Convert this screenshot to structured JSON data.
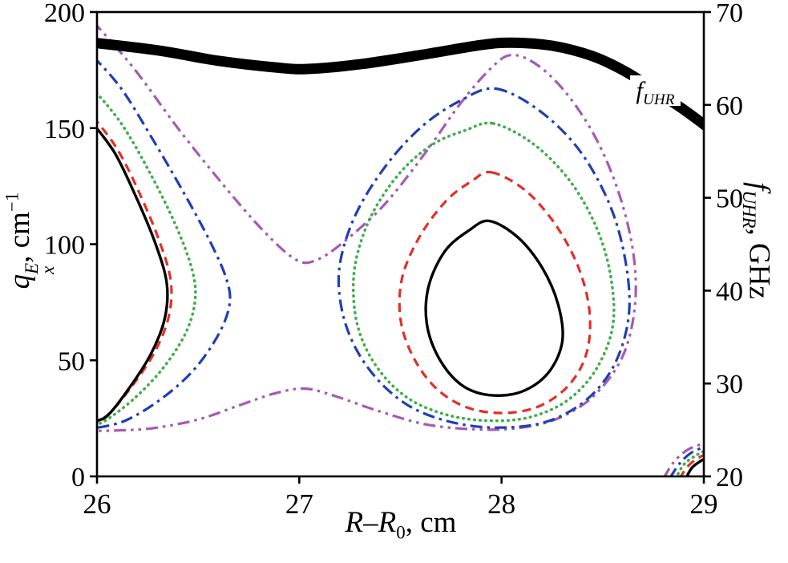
{
  "figure": {
    "x_axis": {
      "r1": "R",
      "dash": "–",
      "r2": "R",
      "sub": "0",
      "rest": ", cm"
    },
    "y_left": {
      "q": "q",
      "sup": "E",
      "sub": "x",
      "rest": ", cm",
      "exp": "−1"
    },
    "y_right": {
      "f": "f",
      "sub": "UHR",
      "rest": ", GHz"
    },
    "curve_label": {
      "f": "f",
      "sub": "UHR",
      "x": 28.76,
      "y": 166
    }
  },
  "chart_data": {
    "type": "contour",
    "title": "",
    "xlabel": "R–R0, cm",
    "ylabel_left": "qxE, cm−1",
    "ylabel_right": "fUHR, GHz",
    "x_range": [
      26,
      29
    ],
    "y_left_range": [
      0,
      200
    ],
    "y_right_range": [
      20,
      70
    ],
    "x_ticks": [
      26,
      27,
      28,
      29
    ],
    "y_left_ticks": [
      0,
      50,
      100,
      150,
      200
    ],
    "y_right_ticks": [
      20,
      30,
      40,
      50,
      60,
      70
    ],
    "grid": false,
    "colors": {
      "black": "#000000",
      "red": "#e03127",
      "green": "#3fae49",
      "blue": "#1f3fb4",
      "purple": "#a55ab4"
    },
    "series": [
      {
        "name": "purple-dumbbell-contour",
        "color": "#a55ab4",
        "style": "dashdotdot",
        "width": 3.2,
        "closed": false,
        "points": [
          [
            25.98,
            196
          ],
          [
            26.18,
            176
          ],
          [
            26.4,
            150
          ],
          [
            26.62,
            126
          ],
          [
            26.82,
            106
          ],
          [
            26.98,
            93.5
          ],
          [
            27.08,
            93
          ],
          [
            27.22,
            101
          ],
          [
            27.42,
            117
          ],
          [
            27.62,
            139
          ],
          [
            27.8,
            161
          ],
          [
            27.95,
            176
          ],
          [
            28.05,
            181.5
          ],
          [
            28.18,
            177
          ],
          [
            28.33,
            164
          ],
          [
            28.47,
            145
          ],
          [
            28.58,
            122
          ],
          [
            28.65,
            97
          ],
          [
            28.66,
            74
          ],
          [
            28.6,
            52
          ],
          [
            28.46,
            35
          ],
          [
            28.28,
            25
          ],
          [
            28.08,
            20.8
          ],
          [
            27.86,
            20.3
          ],
          [
            27.62,
            22.5
          ],
          [
            27.38,
            28.5
          ],
          [
            27.18,
            34.5
          ],
          [
            27.03,
            37.8
          ],
          [
            26.88,
            35.8
          ],
          [
            26.7,
            30.5
          ],
          [
            26.5,
            24.5
          ],
          [
            26.28,
            20.8
          ],
          [
            26.1,
            19.8
          ],
          [
            25.98,
            19.6
          ]
        ]
      },
      {
        "name": "blue-left-contour",
        "color": "#1f3fb4",
        "style": "dashdot",
        "width": 3.2,
        "closed": false,
        "points": [
          [
            25.98,
            181
          ],
          [
            26.12,
            167
          ],
          [
            26.27,
            146
          ],
          [
            26.43,
            122
          ],
          [
            26.56,
            101
          ],
          [
            26.64,
            85
          ],
          [
            26.655,
            74
          ],
          [
            26.6,
            61
          ],
          [
            26.48,
            46
          ],
          [
            26.32,
            33.5
          ],
          [
            26.14,
            24
          ],
          [
            25.98,
            20.6
          ]
        ]
      },
      {
        "name": "blue-right-contour",
        "color": "#1f3fb4",
        "style": "dashdot",
        "width": 3.2,
        "closed": true,
        "points": [
          [
            27.97,
            167
          ],
          [
            28.18,
            158
          ],
          [
            28.38,
            141
          ],
          [
            28.53,
            118
          ],
          [
            28.61,
            94
          ],
          [
            28.63,
            70
          ],
          [
            28.56,
            48.5
          ],
          [
            28.42,
            33
          ],
          [
            28.22,
            23.5
          ],
          [
            27.98,
            21
          ],
          [
            27.76,
            23.2
          ],
          [
            27.56,
            29.5
          ],
          [
            27.4,
            40.5
          ],
          [
            27.28,
            55
          ],
          [
            27.21,
            72
          ],
          [
            27.2,
            91
          ],
          [
            27.28,
            113
          ],
          [
            27.43,
            134
          ],
          [
            27.61,
            151
          ],
          [
            27.8,
            162
          ]
        ]
      },
      {
        "name": "green-left-contour",
        "color": "#3fae49",
        "style": "dotted",
        "width": 3.6,
        "closed": false,
        "points": [
          [
            25.98,
            167
          ],
          [
            26.12,
            152
          ],
          [
            26.26,
            131
          ],
          [
            26.39,
            108
          ],
          [
            26.47,
            89
          ],
          [
            26.485,
            76
          ],
          [
            26.44,
            62
          ],
          [
            26.33,
            47
          ],
          [
            26.19,
            34
          ],
          [
            26.05,
            24.5
          ],
          [
            25.98,
            21.8
          ]
        ]
      },
      {
        "name": "green-right-contour",
        "color": "#3fae49",
        "style": "dotted",
        "width": 3.6,
        "closed": true,
        "points": [
          [
            27.96,
            152
          ],
          [
            28.16,
            143
          ],
          [
            28.34,
            127
          ],
          [
            28.47,
            107
          ],
          [
            28.54,
            86
          ],
          [
            28.55,
            65
          ],
          [
            28.47,
            46.5
          ],
          [
            28.33,
            33
          ],
          [
            28.14,
            25.5
          ],
          [
            27.93,
            24
          ],
          [
            27.73,
            26.5
          ],
          [
            27.55,
            33
          ],
          [
            27.41,
            44
          ],
          [
            27.31,
            59
          ],
          [
            27.27,
            75
          ],
          [
            27.28,
            93
          ],
          [
            27.36,
            113
          ],
          [
            27.5,
            131
          ],
          [
            27.66,
            143
          ],
          [
            27.82,
            149
          ]
        ]
      },
      {
        "name": "red-left-contour",
        "color": "#e03127",
        "style": "dashed",
        "width": 3.2,
        "closed": false,
        "points": [
          [
            25.98,
            155
          ],
          [
            26.1,
            141
          ],
          [
            26.21,
            122
          ],
          [
            26.31,
            101
          ],
          [
            26.365,
            84
          ],
          [
            26.355,
            69
          ],
          [
            26.285,
            53.5
          ],
          [
            26.17,
            38.5
          ],
          [
            26.06,
            27
          ],
          [
            25.98,
            22.8
          ]
        ]
      },
      {
        "name": "red-right-contour",
        "color": "#e03127",
        "style": "dashed",
        "width": 3.2,
        "closed": true,
        "points": [
          [
            27.95,
            131
          ],
          [
            28.12,
            123
          ],
          [
            28.27,
            108
          ],
          [
            28.38,
            90
          ],
          [
            28.435,
            71
          ],
          [
            28.42,
            53
          ],
          [
            28.33,
            39
          ],
          [
            28.18,
            30
          ],
          [
            28.0,
            27.3
          ],
          [
            27.82,
            30
          ],
          [
            27.67,
            38.5
          ],
          [
            27.56,
            52
          ],
          [
            27.5,
            68
          ],
          [
            27.51,
            86
          ],
          [
            27.6,
            104
          ],
          [
            27.73,
            119
          ],
          [
            27.85,
            127
          ]
        ]
      },
      {
        "name": "black-left-contour",
        "color": "#000000",
        "style": "solid",
        "width": 3.4,
        "closed": false,
        "points": [
          [
            25.98,
            152
          ],
          [
            26.09,
            139
          ],
          [
            26.19,
            121
          ],
          [
            26.29,
            100
          ],
          [
            26.345,
            83
          ],
          [
            26.335,
            68
          ],
          [
            26.265,
            52.5
          ],
          [
            26.155,
            37.5
          ],
          [
            26.05,
            26
          ],
          [
            25.98,
            23.8
          ]
        ]
      },
      {
        "name": "black-right-contour",
        "color": "#000000",
        "style": "solid",
        "width": 3.4,
        "closed": true,
        "points": [
          [
            27.94,
            110
          ],
          [
            28.08,
            103
          ],
          [
            28.2,
            90
          ],
          [
            28.28,
            74
          ],
          [
            28.3,
            58
          ],
          [
            28.23,
            44.5
          ],
          [
            28.1,
            36.5
          ],
          [
            27.94,
            35
          ],
          [
            27.8,
            39.5
          ],
          [
            27.69,
            51
          ],
          [
            27.63,
            66
          ],
          [
            27.64,
            82
          ],
          [
            27.72,
            97
          ],
          [
            27.84,
            106
          ]
        ]
      },
      {
        "name": "purple-corner-arc",
        "color": "#a55ab4",
        "style": "dashdotdot",
        "width": 3.2,
        "closed": false,
        "points": [
          [
            28.8,
            -1
          ],
          [
            28.85,
            6
          ],
          [
            28.92,
            11.5
          ],
          [
            29.02,
            14.8
          ]
        ]
      },
      {
        "name": "blue-corner-arc",
        "color": "#1f3fb4",
        "style": "dashdot",
        "width": 3.2,
        "closed": false,
        "points": [
          [
            28.83,
            -1
          ],
          [
            28.88,
            5.5
          ],
          [
            28.94,
            10.3
          ],
          [
            29.02,
            13.2
          ]
        ]
      },
      {
        "name": "green-corner-arc",
        "color": "#3fae49",
        "style": "dotted",
        "width": 3.6,
        "closed": false,
        "points": [
          [
            28.86,
            -1
          ],
          [
            28.9,
            5
          ],
          [
            28.96,
            9
          ],
          [
            29.02,
            11.6
          ]
        ]
      },
      {
        "name": "red-corner-arc",
        "color": "#e03127",
        "style": "dashed",
        "width": 3.2,
        "closed": false,
        "points": [
          [
            28.88,
            -1
          ],
          [
            28.92,
            4.3
          ],
          [
            28.97,
            7.8
          ],
          [
            29.02,
            9.9
          ]
        ]
      },
      {
        "name": "black-corner-arc",
        "color": "#000000",
        "style": "solid",
        "width": 3.4,
        "closed": false,
        "points": [
          [
            28.91,
            -1
          ],
          [
            28.94,
            3.6
          ],
          [
            28.98,
            6.4
          ],
          [
            29.02,
            8.2
          ]
        ]
      },
      {
        "name": "fuhr-boundary-curve",
        "color": "#000000",
        "style": "solid",
        "width": 13,
        "closed": false,
        "points": [
          [
            25.96,
            187
          ],
          [
            26.3,
            183.5
          ],
          [
            26.6,
            179
          ],
          [
            26.9,
            176
          ],
          [
            27.05,
            175.5
          ],
          [
            27.3,
            177.5
          ],
          [
            27.6,
            181.5
          ],
          [
            27.9,
            185.8
          ],
          [
            28.05,
            186.8
          ],
          [
            28.25,
            185.5
          ],
          [
            28.45,
            181
          ],
          [
            28.62,
            174
          ],
          [
            28.78,
            165
          ],
          [
            28.9,
            158
          ],
          [
            29.04,
            149
          ]
        ]
      }
    ]
  }
}
